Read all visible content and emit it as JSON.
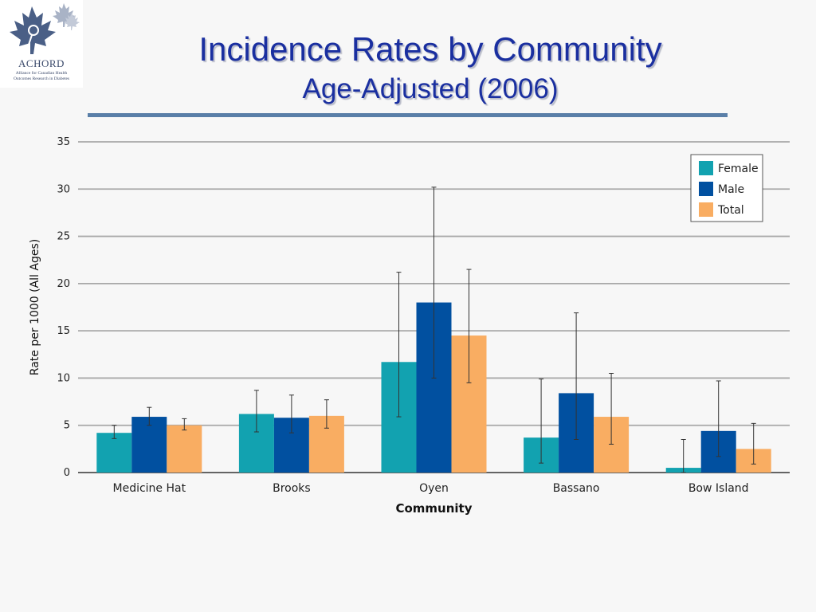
{
  "logo": {
    "name": "ACHORD",
    "subtitle_line1": "Alliance for Canadian Health",
    "subtitle_line2": "Outcomes Research in Diabetes",
    "colors": {
      "leaf": "#4a5f86",
      "leaf_light": "#a9b3c6"
    }
  },
  "title": "Incidence Rates by Community",
  "subtitle": "Age-Adjusted (2006)",
  "colors": {
    "title": "#1a2fa0",
    "rule": "#5a7fa8"
  },
  "chart_data": {
    "type": "bar",
    "xlabel": "Community",
    "ylabel": "Rate per 1000 (All Ages)",
    "ylim": [
      0,
      35
    ],
    "yticks": [
      0,
      5,
      10,
      15,
      20,
      25,
      30,
      35
    ],
    "grid": true,
    "legend": "top-right",
    "categories": [
      "Medicine Hat",
      "Brooks",
      "Oyen",
      "Bassano",
      "Bow Island"
    ],
    "series": [
      {
        "name": "Female",
        "color": "#12a2b0",
        "values": [
          4.2,
          6.2,
          11.7,
          3.7,
          0.5
        ],
        "ci_low": [
          3.6,
          4.3,
          5.9,
          1.0,
          0.0
        ],
        "ci_high": [
          5.0,
          8.7,
          21.2,
          9.9,
          3.5
        ]
      },
      {
        "name": "Male",
        "color": "#0150a0",
        "values": [
          5.9,
          5.8,
          18.0,
          8.4,
          4.4
        ],
        "ci_low": [
          5.0,
          4.2,
          10.0,
          3.5,
          1.7
        ],
        "ci_high": [
          6.9,
          8.2,
          30.2,
          16.9,
          9.7
        ]
      },
      {
        "name": "Total",
        "color": "#f9ad62",
        "values": [
          5.0,
          6.0,
          14.5,
          5.9,
          2.5
        ],
        "ci_low": [
          4.5,
          4.7,
          9.5,
          3.0,
          0.9
        ],
        "ci_high": [
          5.7,
          7.7,
          21.5,
          10.5,
          5.2
        ]
      }
    ]
  }
}
